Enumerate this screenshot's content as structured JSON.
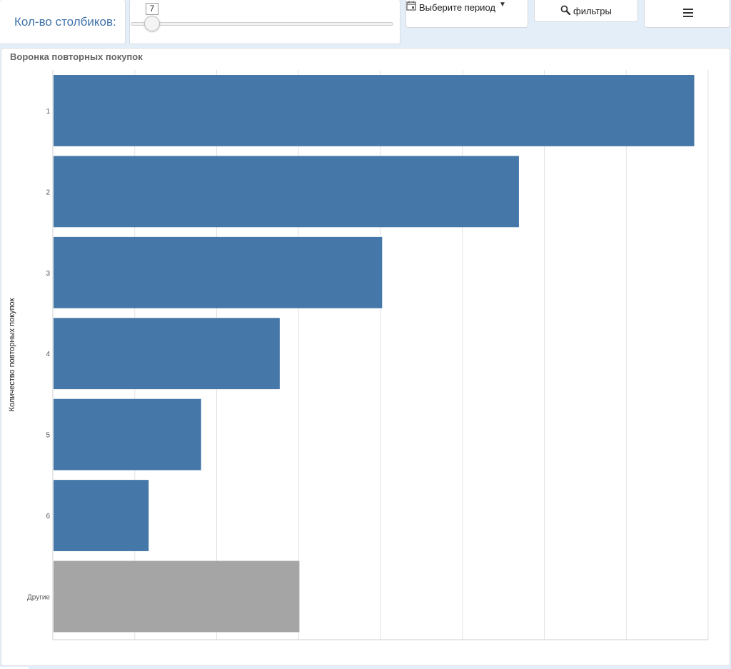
{
  "toolbar": {
    "count_label": "Кол-во столбиков:",
    "slider_value": "7",
    "period_label": "Выберите период",
    "filters_label": "фильтры",
    "calendar_icon": "calendar-icon",
    "search_icon": "magnifier-icon",
    "menu_icon": "hamburger-icon"
  },
  "chart_data": {
    "type": "bar",
    "orientation": "horizontal",
    "title": "Воронка повторных покупок",
    "ylabel": "Количество повторных покупок",
    "xlabel": "",
    "categories": [
      "1",
      "2",
      "3",
      "4",
      "5",
      "6",
      "Другие"
    ],
    "values": [
      7.83,
      5.69,
      4.02,
      2.77,
      1.81,
      1.17,
      3.01
    ],
    "xlim": [
      0,
      8
    ],
    "grid": true,
    "colors": {
      "bar": "#4577a8",
      "other_bar": "#a5a5a5",
      "grid": "#e3e3e3",
      "axis_text": "#555555"
    }
  }
}
